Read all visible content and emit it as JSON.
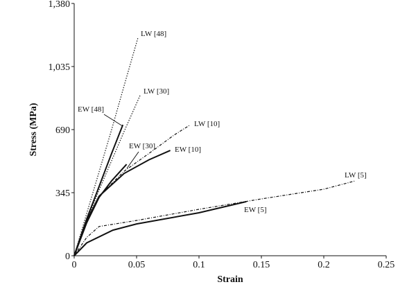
{
  "chart_data": {
    "type": "line",
    "title": "",
    "xlabel": "Strain",
    "ylabel": "Stress (MPa)",
    "xlim": [
      0,
      0.25
    ],
    "ylim": [
      0,
      1380
    ],
    "xticks": [
      "0",
      "0.05",
      "0.1",
      "0.15",
      "0.2",
      "0.25"
    ],
    "yticks": [
      "0",
      "345",
      "690",
      "1,035",
      "1,380"
    ],
    "grid": false,
    "legend": "none (inline labels)",
    "colors": {
      "ink": "#111111"
    },
    "series": [
      {
        "name": "LW [48]",
        "style": "dotted",
        "x": [
          0,
          0.01,
          0.02,
          0.03,
          0.04,
          0.051
        ],
        "y": [
          0,
          230,
          460,
          690,
          930,
          1190
        ]
      },
      {
        "name": "LW [30]",
        "style": "dotted",
        "x": [
          0,
          0.01,
          0.02,
          0.03,
          0.04,
          0.053
        ],
        "y": [
          0,
          190,
          360,
          520,
          680,
          880
        ]
      },
      {
        "name": "EW [48]",
        "style": "solid",
        "x": [
          0,
          0.01,
          0.02,
          0.03,
          0.039
        ],
        "y": [
          0,
          200,
          380,
          560,
          716
        ]
      },
      {
        "name": "EW [30]",
        "style": "solid",
        "x": [
          0,
          0.01,
          0.02,
          0.03,
          0.042
        ],
        "y": [
          0,
          180,
          320,
          410,
          500
        ]
      },
      {
        "name": "LW [10]",
        "style": "dashed",
        "x": [
          0,
          0.01,
          0.02,
          0.04,
          0.06,
          0.08,
          0.093
        ],
        "y": [
          0,
          190,
          326,
          462,
          560,
          660,
          716
        ]
      },
      {
        "name": "EW [10]",
        "style": "solid",
        "x": [
          0,
          0.01,
          0.02,
          0.04,
          0.06,
          0.077
        ],
        "y": [
          0,
          190,
          326,
          450,
          525,
          576
        ]
      },
      {
        "name": "LW [5]",
        "style": "dashed",
        "x": [
          0,
          0.01,
          0.02,
          0.05,
          0.1,
          0.15,
          0.2,
          0.225
        ],
        "y": [
          0,
          100,
          160,
          193,
          254,
          311,
          364,
          409
        ]
      },
      {
        "name": "EW [5]",
        "style": "solid",
        "x": [
          0,
          0.01,
          0.031,
          0.05,
          0.1,
          0.138
        ],
        "y": [
          0,
          70,
          140,
          174,
          235,
          296
        ]
      }
    ]
  }
}
